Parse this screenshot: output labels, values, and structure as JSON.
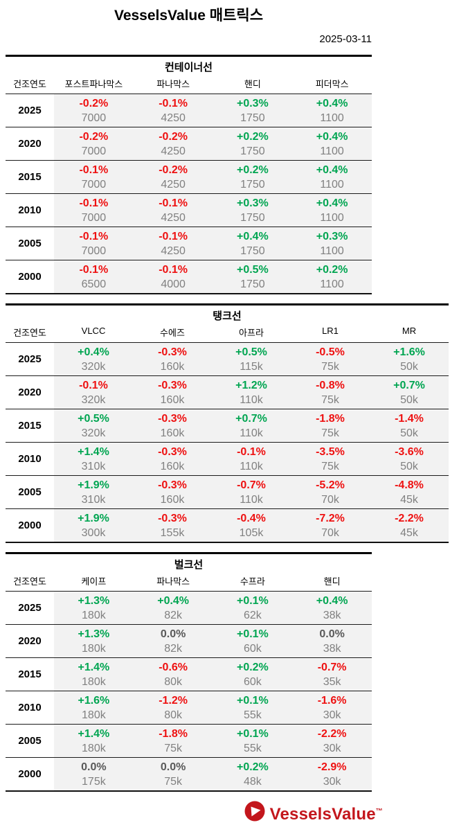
{
  "page": {
    "title": "VesselsValue 매트릭스",
    "date": "2025-03-11"
  },
  "footer": {
    "logo_text": "VesselsValue",
    "trademark": "™",
    "logo_icon": "play-triangle-in-red-circle"
  },
  "colors": {
    "positive": "#00a551",
    "negative": "#ee1111",
    "neutral": "#595959",
    "value_text": "#808080",
    "row_background": "#f2f2f2",
    "logo_red": "#c3161c"
  },
  "chart_data": [
    {
      "type": "table",
      "title": "컨테이너선",
      "year_header": "건조연도",
      "columns": [
        "포스트파나막스",
        "파나막스",
        "핸디",
        "피더막스"
      ],
      "rows": [
        {
          "year": "2025",
          "cells": [
            {
              "pct": "-0.2%",
              "value": "7000"
            },
            {
              "pct": "-0.1%",
              "value": "4250"
            },
            {
              "pct": "+0.3%",
              "value": "1750"
            },
            {
              "pct": "+0.4%",
              "value": "1100"
            }
          ]
        },
        {
          "year": "2020",
          "cells": [
            {
              "pct": "-0.2%",
              "value": "7000"
            },
            {
              "pct": "-0.2%",
              "value": "4250"
            },
            {
              "pct": "+0.2%",
              "value": "1750"
            },
            {
              "pct": "+0.4%",
              "value": "1100"
            }
          ]
        },
        {
          "year": "2015",
          "cells": [
            {
              "pct": "-0.1%",
              "value": "7000"
            },
            {
              "pct": "-0.2%",
              "value": "4250"
            },
            {
              "pct": "+0.2%",
              "value": "1750"
            },
            {
              "pct": "+0.4%",
              "value": "1100"
            }
          ]
        },
        {
          "year": "2010",
          "cells": [
            {
              "pct": "-0.1%",
              "value": "7000"
            },
            {
              "pct": "-0.1%",
              "value": "4250"
            },
            {
              "pct": "+0.3%",
              "value": "1750"
            },
            {
              "pct": "+0.4%",
              "value": "1100"
            }
          ]
        },
        {
          "year": "2005",
          "cells": [
            {
              "pct": "-0.1%",
              "value": "7000"
            },
            {
              "pct": "-0.1%",
              "value": "4250"
            },
            {
              "pct": "+0.4%",
              "value": "1750"
            },
            {
              "pct": "+0.3%",
              "value": "1100"
            }
          ]
        },
        {
          "year": "2000",
          "cells": [
            {
              "pct": "-0.1%",
              "value": "6500"
            },
            {
              "pct": "-0.1%",
              "value": "4000"
            },
            {
              "pct": "+0.5%",
              "value": "1750"
            },
            {
              "pct": "+0.2%",
              "value": "1100"
            }
          ]
        }
      ]
    },
    {
      "type": "table",
      "title": "탱크선",
      "year_header": "건조연도",
      "columns": [
        "VLCC",
        "수에즈",
        "아프라",
        "LR1",
        "MR"
      ],
      "rows": [
        {
          "year": "2025",
          "cells": [
            {
              "pct": "+0.4%",
              "value": "320k"
            },
            {
              "pct": "-0.3%",
              "value": "160k"
            },
            {
              "pct": "+0.5%",
              "value": "115k"
            },
            {
              "pct": "-0.5%",
              "value": "75k"
            },
            {
              "pct": "+1.6%",
              "value": "50k"
            }
          ]
        },
        {
          "year": "2020",
          "cells": [
            {
              "pct": "-0.1%",
              "value": "320k"
            },
            {
              "pct": "-0.3%",
              "value": "160k"
            },
            {
              "pct": "+1.2%",
              "value": "110k"
            },
            {
              "pct": "-0.8%",
              "value": "75k"
            },
            {
              "pct": "+0.7%",
              "value": "50k"
            }
          ]
        },
        {
          "year": "2015",
          "cells": [
            {
              "pct": "+0.5%",
              "value": "320k"
            },
            {
              "pct": "-0.3%",
              "value": "160k"
            },
            {
              "pct": "+0.7%",
              "value": "110k"
            },
            {
              "pct": "-1.8%",
              "value": "75k"
            },
            {
              "pct": "-1.4%",
              "value": "50k"
            }
          ]
        },
        {
          "year": "2010",
          "cells": [
            {
              "pct": "+1.4%",
              "value": "310k"
            },
            {
              "pct": "-0.3%",
              "value": "160k"
            },
            {
              "pct": "-0.1%",
              "value": "110k"
            },
            {
              "pct": "-3.5%",
              "value": "75k"
            },
            {
              "pct": "-3.6%",
              "value": "50k"
            }
          ]
        },
        {
          "year": "2005",
          "cells": [
            {
              "pct": "+1.9%",
              "value": "310k"
            },
            {
              "pct": "-0.3%",
              "value": "160k"
            },
            {
              "pct": "-0.7%",
              "value": "110k"
            },
            {
              "pct": "-5.2%",
              "value": "70k"
            },
            {
              "pct": "-4.8%",
              "value": "45k"
            }
          ]
        },
        {
          "year": "2000",
          "cells": [
            {
              "pct": "+1.9%",
              "value": "300k"
            },
            {
              "pct": "-0.3%",
              "value": "155k"
            },
            {
              "pct": "-0.4%",
              "value": "105k"
            },
            {
              "pct": "-7.2%",
              "value": "70k"
            },
            {
              "pct": "-2.2%",
              "value": "45k"
            }
          ]
        }
      ]
    },
    {
      "type": "table",
      "title": "벌크선",
      "year_header": "건조연도",
      "columns": [
        "케이프",
        "파나막스",
        "수프라",
        "핸디"
      ],
      "rows": [
        {
          "year": "2025",
          "cells": [
            {
              "pct": "+1.3%",
              "value": "180k"
            },
            {
              "pct": "+0.4%",
              "value": "82k"
            },
            {
              "pct": "+0.1%",
              "value": "62k"
            },
            {
              "pct": "+0.4%",
              "value": "38k"
            }
          ]
        },
        {
          "year": "2020",
          "cells": [
            {
              "pct": "+1.3%",
              "value": "180k"
            },
            {
              "pct": "0.0%",
              "value": "82k"
            },
            {
              "pct": "+0.1%",
              "value": "60k"
            },
            {
              "pct": "0.0%",
              "value": "38k"
            }
          ]
        },
        {
          "year": "2015",
          "cells": [
            {
              "pct": "+1.4%",
              "value": "180k"
            },
            {
              "pct": "-0.6%",
              "value": "80k"
            },
            {
              "pct": "+0.2%",
              "value": "60k"
            },
            {
              "pct": "-0.7%",
              "value": "35k"
            }
          ]
        },
        {
          "year": "2010",
          "cells": [
            {
              "pct": "+1.6%",
              "value": "180k"
            },
            {
              "pct": "-1.2%",
              "value": "80k"
            },
            {
              "pct": "+0.1%",
              "value": "55k"
            },
            {
              "pct": "-1.6%",
              "value": "30k"
            }
          ]
        },
        {
          "year": "2005",
          "cells": [
            {
              "pct": "+1.4%",
              "value": "180k"
            },
            {
              "pct": "-1.8%",
              "value": "75k"
            },
            {
              "pct": "+0.1%",
              "value": "55k"
            },
            {
              "pct": "-2.2%",
              "value": "30k"
            }
          ]
        },
        {
          "year": "2000",
          "cells": [
            {
              "pct": "0.0%",
              "value": "175k"
            },
            {
              "pct": "0.0%",
              "value": "75k"
            },
            {
              "pct": "+0.2%",
              "value": "48k"
            },
            {
              "pct": "-2.9%",
              "value": "30k"
            }
          ]
        }
      ]
    }
  ]
}
